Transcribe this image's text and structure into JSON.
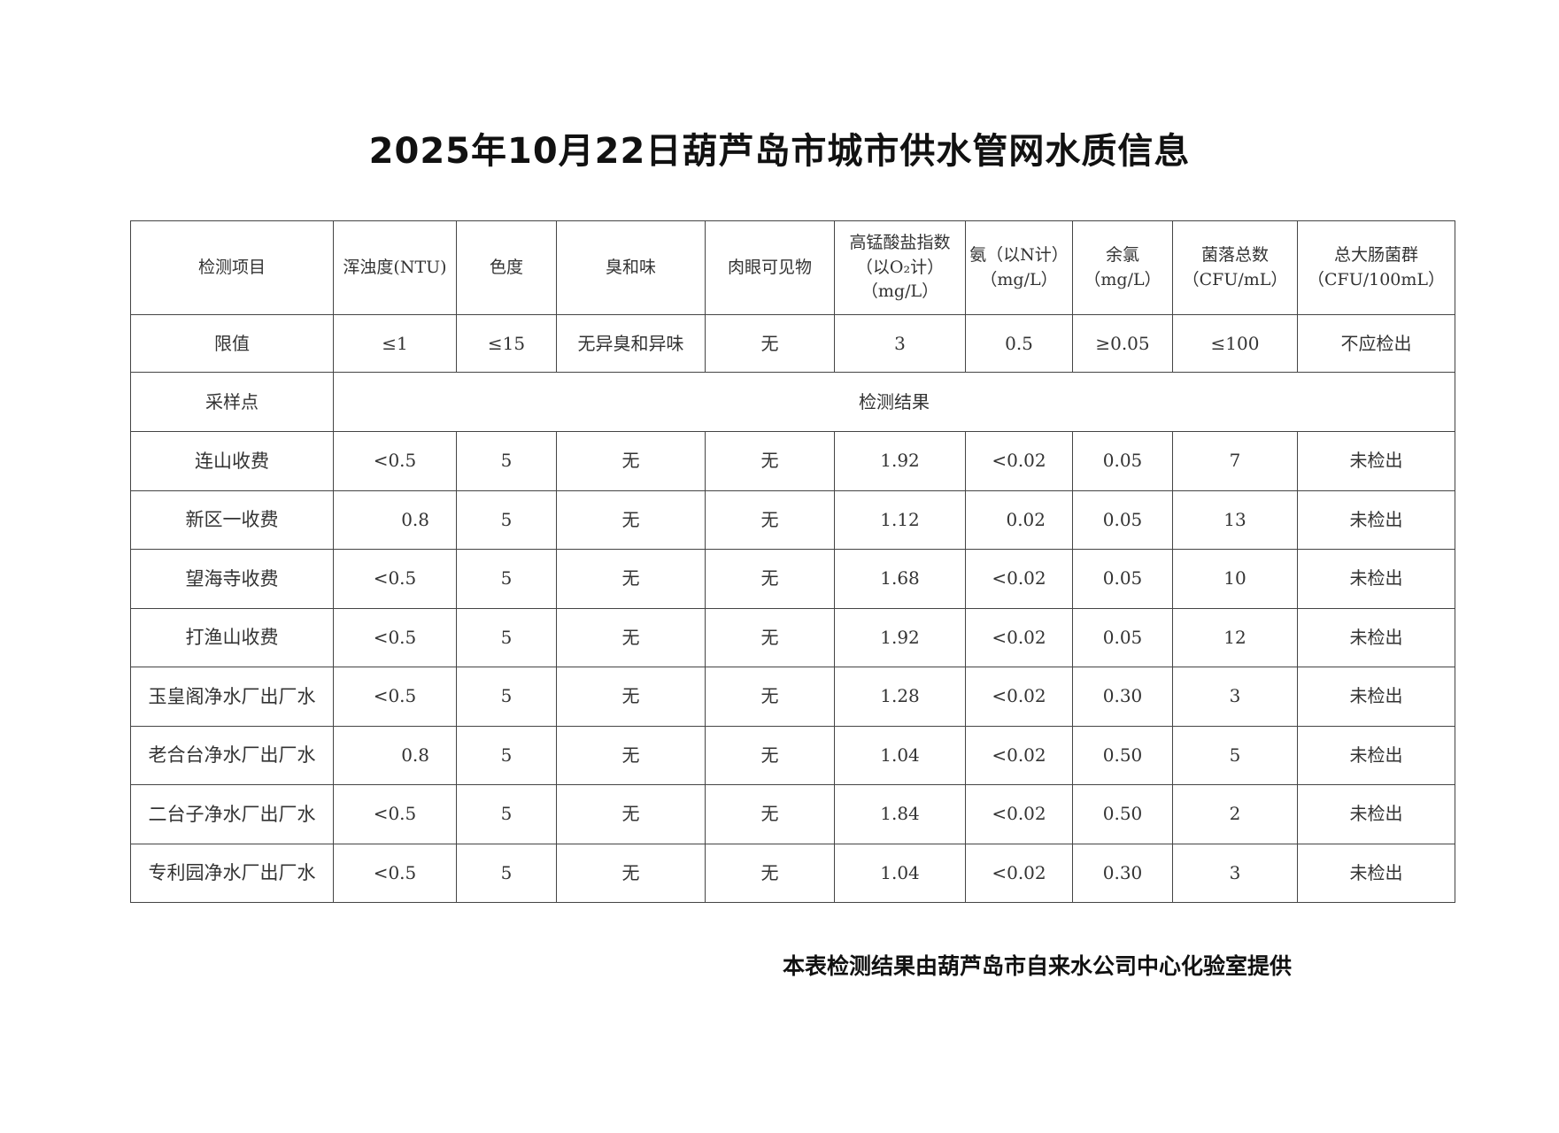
{
  "title": "2025年10月22日葫芦岛市城市供水管网水质信息",
  "headers": [
    "检测项目",
    "浑浊度(NTU)",
    "色度",
    "臭和味",
    "肉眼可见物",
    "高锰酸盐指数（以O₂计）（mg/L）",
    "氨（以N计）（mg/L）",
    "余氯（mg/L）",
    "菌落总数（CFU/mL）",
    "总大肠菌群（CFU/100mL）"
  ],
  "limits": [
    "限值",
    "≤1",
    "≤15",
    "无异臭和异味",
    "无",
    "3",
    "0.5",
    "≥0.05",
    "≤100",
    "不应检出"
  ],
  "sample_label": "采样点",
  "results_label": "检测结果",
  "rows": [
    [
      "连山收费",
      "<0.5",
      "5",
      "无",
      "无",
      "1.92",
      "<0.02",
      "0.05",
      "7",
      "未检出"
    ],
    [
      "新区一收费",
      "0.8",
      "5",
      "无",
      "无",
      "1.12",
      "0.02",
      "0.05",
      "13",
      "未检出"
    ],
    [
      "望海寺收费",
      "<0.5",
      "5",
      "无",
      "无",
      "1.68",
      "<0.02",
      "0.05",
      "10",
      "未检出"
    ],
    [
      "打渔山收费",
      "<0.5",
      "5",
      "无",
      "无",
      "1.92",
      "<0.02",
      "0.05",
      "12",
      "未检出"
    ],
    [
      "玉皇阁净水厂出厂水",
      "<0.5",
      "5",
      "无",
      "无",
      "1.28",
      "<0.02",
      "0.30",
      "3",
      "未检出"
    ],
    [
      "老合台净水厂出厂水",
      "0.8",
      "5",
      "无",
      "无",
      "1.04",
      "<0.02",
      "0.50",
      "5",
      "未检出"
    ],
    [
      "二台子净水厂出厂水",
      "<0.5",
      "5",
      "无",
      "无",
      "1.84",
      "<0.02",
      "0.50",
      "2",
      "未检出"
    ],
    [
      "专利园净水厂出厂水",
      "<0.5",
      "5",
      "无",
      "无",
      "1.04",
      "<0.02",
      "0.30",
      "3",
      "未检出"
    ]
  ],
  "footer": "本表检测结果由葫芦岛市自来水公司中心化验室提供"
}
